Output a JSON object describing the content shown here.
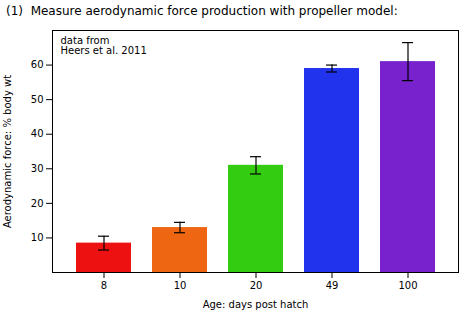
{
  "chart_data": {
    "type": "bar",
    "title": "(1)  Measure aerodynamic force production with propeller model:",
    "categories": [
      "8",
      "10",
      "20",
      "49",
      "100"
    ],
    "values": [
      8.5,
      13.0,
      31.0,
      59.0,
      61.0
    ],
    "errors": [
      2.0,
      1.5,
      2.5,
      1.0,
      5.5
    ],
    "colors": [
      "#ee1111",
      "#ee6611",
      "#33cc11",
      "#2233ee",
      "#7722cc"
    ],
    "xlabel": "Age: days post hatch",
    "ylabel": "Aerodynamic force: % body wt",
    "ylim": [
      0,
      70
    ],
    "yticks": [
      10,
      20,
      30,
      40,
      50,
      60
    ],
    "annotation": "data from\nHeers et al. 2011",
    "grid": false
  }
}
